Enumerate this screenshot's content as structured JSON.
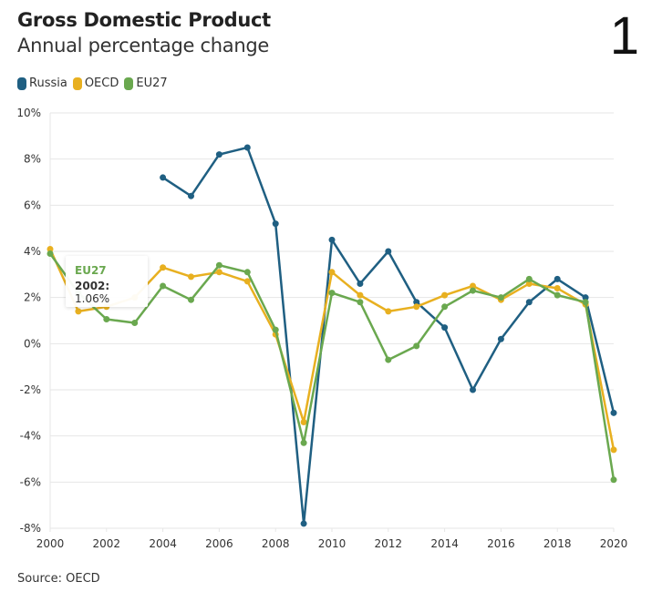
{
  "panel_number": "1",
  "source": "Source: OECD",
  "tooltip": {
    "series": "EU27",
    "year": "2002:",
    "value": "1.06%"
  },
  "chart_data": {
    "type": "line",
    "title": "Gross Domestic Product",
    "subtitle": "Annual percentage change",
    "xlabel": "",
    "ylabel": "",
    "ylim": [
      -8,
      10
    ],
    "xlim": [
      2000,
      2020
    ],
    "grid": true,
    "legend_position": "top-left",
    "y_ticks": [
      10,
      8,
      6,
      4,
      2,
      0,
      -2,
      -4,
      -6,
      -8
    ],
    "y_tick_labels": [
      "10%",
      "8%",
      "6%",
      "4%",
      "2%",
      "0%",
      "-2%",
      "-4%",
      "-6%",
      "-8%"
    ],
    "x_ticks": [
      2000,
      2002,
      2004,
      2006,
      2008,
      2010,
      2012,
      2014,
      2016,
      2018,
      2020
    ],
    "x_tick_labels": [
      "2000",
      "2002",
      "2004",
      "2006",
      "2008",
      "2010",
      "2012",
      "2014",
      "2016",
      "2018",
      "2020"
    ],
    "x": [
      2000,
      2001,
      2002,
      2003,
      2004,
      2005,
      2006,
      2007,
      2008,
      2009,
      2010,
      2011,
      2012,
      2013,
      2014,
      2015,
      2016,
      2017,
      2018,
      2019,
      2020
    ],
    "series": [
      {
        "name": "Russia",
        "color": "#1f5f82",
        "values": [
          null,
          null,
          null,
          null,
          7.2,
          6.4,
          8.2,
          8.5,
          5.2,
          -7.8,
          4.5,
          2.6,
          4.0,
          1.8,
          0.7,
          -2.0,
          0.2,
          1.8,
          2.8,
          2.0,
          -3.0
        ]
      },
      {
        "name": "OECD",
        "color": "#e8b020",
        "values": [
          4.1,
          1.4,
          1.6,
          2.0,
          3.3,
          2.9,
          3.1,
          2.7,
          0.4,
          -3.4,
          3.1,
          2.1,
          1.4,
          1.6,
          2.1,
          2.5,
          1.9,
          2.6,
          2.4,
          1.7,
          -4.6
        ]
      },
      {
        "name": "EU27",
        "color": "#6aa84f",
        "values": [
          3.9,
          2.2,
          1.06,
          0.9,
          2.5,
          1.9,
          3.4,
          3.1,
          0.6,
          -4.3,
          2.2,
          1.8,
          -0.7,
          -0.1,
          1.6,
          2.3,
          2.0,
          2.8,
          2.1,
          1.8,
          -5.9
        ]
      }
    ]
  }
}
